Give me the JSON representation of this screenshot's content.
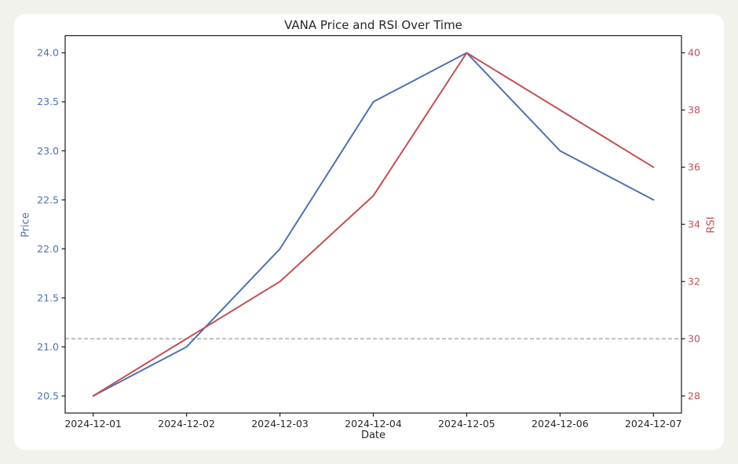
{
  "page": {
    "background": "#f1f2eb",
    "card_background": "#ffffff"
  },
  "chart_data": {
    "type": "line",
    "title": "VANA Price and RSI Over Time",
    "xlabel": "Date",
    "x": [
      "2024-12-01",
      "2024-12-02",
      "2024-12-03",
      "2024-12-04",
      "2024-12-05",
      "2024-12-06",
      "2024-12-07"
    ],
    "x_range": [
      -0.3,
      6.3
    ],
    "series": [
      {
        "name": "Price",
        "axis": "left",
        "color": "#4c72b0",
        "values": [
          20.5,
          21.0,
          22.0,
          23.5,
          24.0,
          23.0,
          22.5
        ]
      },
      {
        "name": "RSI",
        "axis": "right",
        "color": "#c44e52",
        "values": [
          28,
          30,
          32,
          35,
          40,
          38,
          36
        ]
      }
    ],
    "left_axis": {
      "label": "Price",
      "color": "#4c72b0",
      "ticks": [
        "20.5",
        "21.0",
        "21.5",
        "22.0",
        "22.5",
        "23.0",
        "23.5",
        "24.0"
      ],
      "range": [
        20.325,
        24.175
      ]
    },
    "right_axis": {
      "label": "RSI",
      "color": "#c44e52",
      "ticks": [
        "28",
        "30",
        "32",
        "34",
        "36",
        "38",
        "40"
      ],
      "range": [
        27.4,
        40.6
      ]
    },
    "reference_line": {
      "axis": "right",
      "value": 30,
      "style": "dashed",
      "color": "#848484"
    },
    "grid": false,
    "legend": "none",
    "spine_color": "#1a1a1a",
    "tick_text_color": "#262626"
  }
}
